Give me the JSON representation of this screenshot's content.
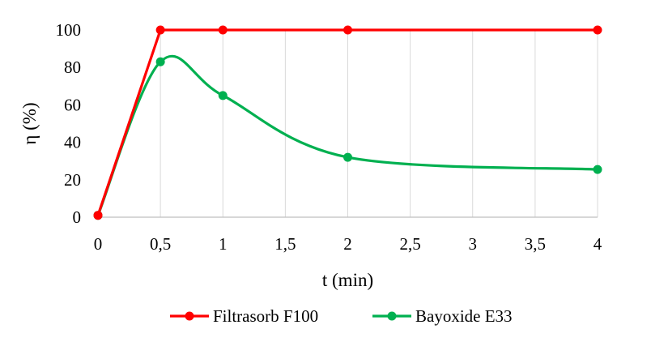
{
  "chart_data": {
    "type": "line",
    "title": "",
    "xlabel": "t (min)",
    "ylabel": "η (%)",
    "xlim": [
      0,
      4
    ],
    "ylim": [
      0,
      100
    ],
    "grid": "vertical",
    "legend_position": "bottom",
    "x_tick_labels": [
      "0",
      "0,5",
      "1",
      "1,5",
      "2",
      "2,5",
      "3",
      "3,5",
      "4"
    ],
    "y_tick_labels": [
      "0",
      "20",
      "40",
      "60",
      "80",
      "100"
    ],
    "series": [
      {
        "name": "Filtrasorb F100",
        "color": "#ff0000",
        "smooth": false,
        "x": [
          0,
          0.5,
          1,
          2,
          4
        ],
        "y": [
          1,
          100,
          100,
          100,
          100
        ]
      },
      {
        "name": "Bayoxide E33",
        "color": "#00b050",
        "smooth": true,
        "x": [
          0,
          0.5,
          1,
          2,
          4
        ],
        "y": [
          1,
          83,
          65,
          32,
          25.5
        ]
      }
    ]
  }
}
